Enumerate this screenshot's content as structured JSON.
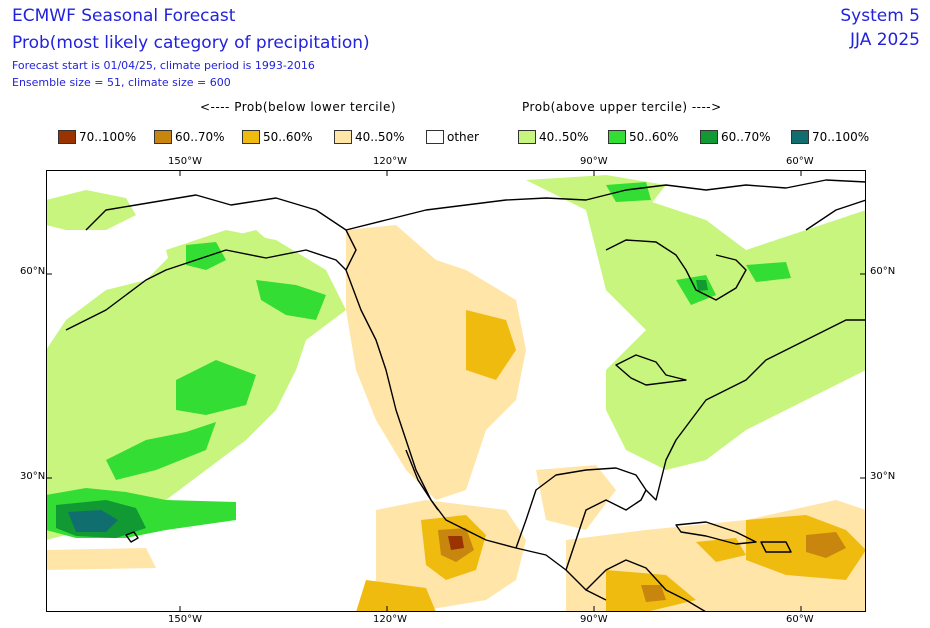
{
  "header": {
    "title": "ECMWF Seasonal Forecast",
    "subtitle": "Prob(most likely category of precipitation)",
    "line1": "Forecast start is 01/04/25, climate period is 1993-2016",
    "line2": "Ensemble size = 51, climate size = 600",
    "system": "System 5",
    "season": "JJA 2025"
  },
  "legend": {
    "below_label": "<---- Prob(below lower tercile)",
    "above_label": "Prob(above upper tercile) ---->",
    "items": [
      {
        "label": "70..100%",
        "color": "#993300"
      },
      {
        "label": "60..70%",
        "color": "#c8860f"
      },
      {
        "label": "50..60%",
        "color": "#f0bb0f"
      },
      {
        "label": "40..50%",
        "color": "#ffe5a8"
      },
      {
        "label": "other",
        "color": "#ffffff"
      },
      {
        "label": "40..50%",
        "color": "#c8f57d"
      },
      {
        "label": "50..60%",
        "color": "#33dd33"
      },
      {
        "label": "60..70%",
        "color": "#119933"
      },
      {
        "label": "70..100%",
        "color": "#116e6e"
      }
    ]
  },
  "axes": {
    "lon_labels": [
      "150°W",
      "120°W",
      "90°W",
      "60°W"
    ],
    "lat_labels": [
      "60°N",
      "30°N"
    ]
  }
}
